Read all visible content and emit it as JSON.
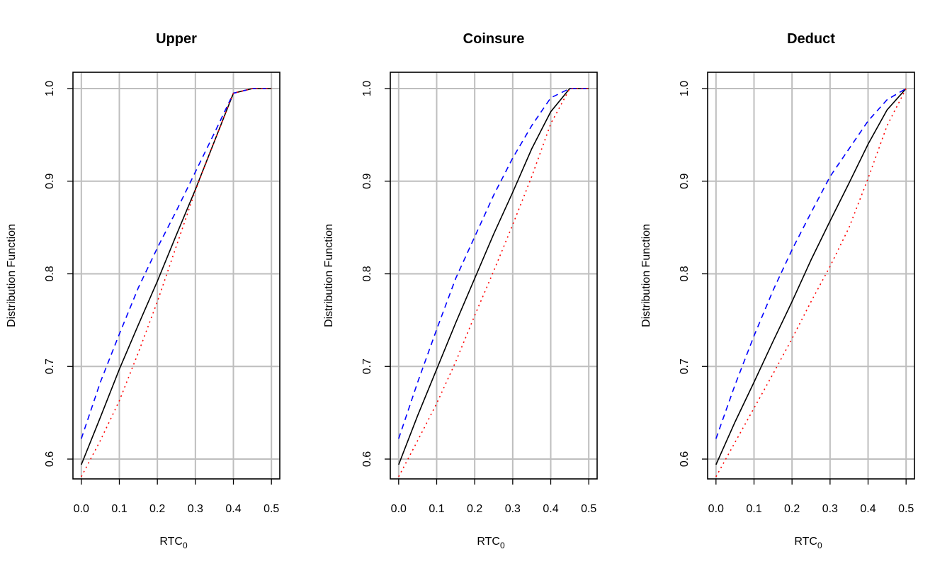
{
  "chart_data": [
    {
      "type": "line",
      "title": "Upper",
      "xlabel": "RTC",
      "xlabel_subscript": "0",
      "ylabel": "Distribution Function",
      "xlim": [
        -0.022,
        0.522
      ],
      "ylim": [
        0.5786,
        1.0176
      ],
      "xticks": [
        "0.0",
        "0.1",
        "0.2",
        "0.3",
        "0.4",
        "0.5"
      ],
      "yticks": [
        "0.6",
        "0.7",
        "0.8",
        "0.9",
        "1.0"
      ],
      "grid": true,
      "x": [
        0,
        0.05,
        0.1,
        0.15,
        0.2,
        0.25,
        0.3,
        0.35,
        0.4,
        0.45,
        0.5
      ],
      "series": [
        {
          "color": "#000000",
          "style": "solid",
          "values": [
            0.594,
            0.645,
            0.697,
            0.745,
            0.792,
            0.842,
            0.891,
            0.943,
            0.995,
            1.0,
            1.0
          ]
        },
        {
          "color": "#0000ff",
          "style": "dashed",
          "values": [
            0.622,
            0.683,
            0.735,
            0.785,
            0.828,
            0.868,
            0.91,
            0.952,
            0.995,
            1.0,
            1.0
          ]
        },
        {
          "color": "#ff0000",
          "style": "dotted",
          "values": [
            0.581,
            0.62,
            0.663,
            0.715,
            0.77,
            0.83,
            0.89,
            0.943,
            0.995,
            1.0,
            1.0
          ]
        }
      ]
    },
    {
      "type": "line",
      "title": "Coinsure",
      "xlabel": "RTC",
      "xlabel_subscript": "0",
      "ylabel": "Distribution Function",
      "xlim": [
        -0.022,
        0.522
      ],
      "ylim": [
        0.5786,
        1.0176
      ],
      "xticks": [
        "0.0",
        "0.1",
        "0.2",
        "0.3",
        "0.4",
        "0.5"
      ],
      "yticks": [
        "0.6",
        "0.7",
        "0.8",
        "0.9",
        "1.0"
      ],
      "grid": true,
      "x": [
        0,
        0.05,
        0.1,
        0.15,
        0.2,
        0.25,
        0.3,
        0.35,
        0.4,
        0.45,
        0.5
      ],
      "series": [
        {
          "color": "#000000",
          "style": "solid",
          "values": [
            0.594,
            0.647,
            0.697,
            0.747,
            0.795,
            0.843,
            0.888,
            0.935,
            0.975,
            1.0,
            1.0
          ]
        },
        {
          "color": "#0000ff",
          "style": "dashed",
          "values": [
            0.622,
            0.683,
            0.74,
            0.795,
            0.84,
            0.885,
            0.925,
            0.96,
            0.99,
            1.0,
            1.0
          ]
        },
        {
          "color": "#ff0000",
          "style": "dotted",
          "values": [
            0.581,
            0.62,
            0.66,
            0.705,
            0.755,
            0.803,
            0.853,
            0.905,
            0.962,
            1.0,
            1.0
          ]
        }
      ]
    },
    {
      "type": "line",
      "title": "Deduct",
      "xlabel": "RTC",
      "xlabel_subscript": "0",
      "ylabel": "Distribution Function",
      "xlim": [
        -0.022,
        0.522
      ],
      "ylim": [
        0.5786,
        1.0176
      ],
      "xticks": [
        "0.0",
        "0.1",
        "0.2",
        "0.3",
        "0.4",
        "0.5"
      ],
      "yticks": [
        "0.6",
        "0.7",
        "0.8",
        "0.9",
        "1.0"
      ],
      "grid": true,
      "x": [
        0,
        0.05,
        0.1,
        0.15,
        0.2,
        0.25,
        0.3,
        0.35,
        0.4,
        0.45,
        0.5
      ],
      "series": [
        {
          "color": "#000000",
          "style": "solid",
          "values": [
            0.594,
            0.64,
            0.683,
            0.727,
            0.77,
            0.815,
            0.857,
            0.898,
            0.94,
            0.977,
            1.0
          ]
        },
        {
          "color": "#0000ff",
          "style": "dashed",
          "values": [
            0.622,
            0.68,
            0.733,
            0.782,
            0.826,
            0.866,
            0.905,
            0.935,
            0.965,
            0.988,
            1.0
          ]
        },
        {
          "color": "#ff0000",
          "style": "dotted",
          "values": [
            0.581,
            0.618,
            0.655,
            0.692,
            0.73,
            0.77,
            0.808,
            0.85,
            0.903,
            0.96,
            1.0
          ]
        }
      ]
    }
  ]
}
